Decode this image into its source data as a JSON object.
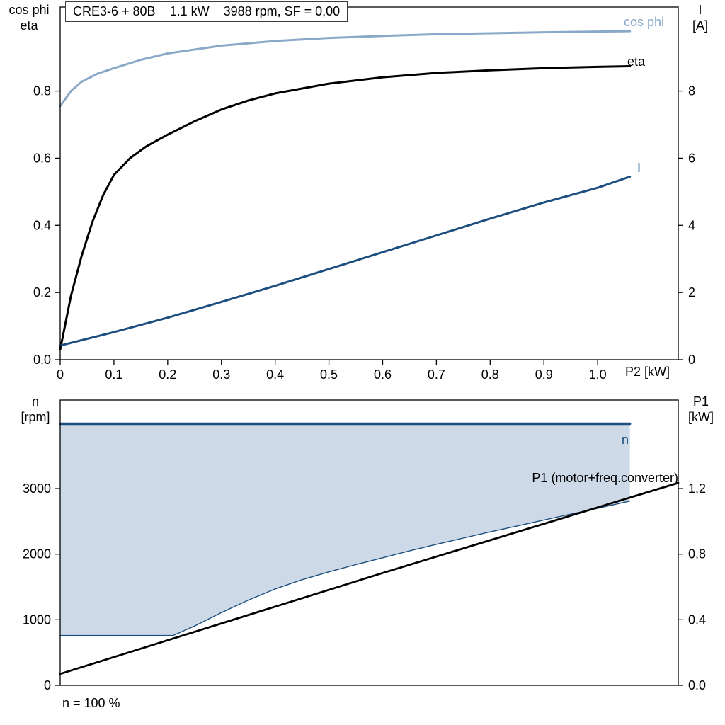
{
  "window": {
    "background": "#ffffff"
  },
  "title_box": {
    "parts": [
      "CRE3-6 + 80B",
      "1.1 kW",
      "3988 rpm, SF = 0,00"
    ]
  },
  "labels": {
    "top_left_axis": [
      "cos phi",
      "eta"
    ],
    "top_right_axis": [
      "I",
      "[A]"
    ],
    "bottom_left_axis": [
      "n",
      "[rpm]"
    ],
    "bottom_right_axis": [
      "P1",
      "[kW]"
    ],
    "x_axis_title": "P2 [kW]",
    "curve_cos_phi": "cos phi",
    "curve_eta": "eta",
    "curve_current": "I",
    "curve_n": "n",
    "curve_p1": "P1 (motor+freq.converter)",
    "footnote": "n = 100 %"
  },
  "colors": {
    "steel_blue": "#8aa8c8",
    "dark_blue": "#1c4f7f",
    "black": "#000000",
    "area_fill": "#cdd9e6",
    "border": "#000000"
  },
  "chart_data": [
    {
      "id": "top",
      "type": "line",
      "title": "CRE3-6 + 80B  1.1 kW  3988 rpm, SF = 0,00",
      "x": {
        "label": "P2 [kW]",
        "min": 0,
        "max": 1.15,
        "ticks": [
          0,
          0.1,
          0.2,
          0.3,
          0.4,
          0.5,
          0.6,
          0.7,
          0.8,
          0.9,
          1.0
        ],
        "tick_labels": [
          "0",
          "0.1",
          "0.2",
          "0.3",
          "0.4",
          "0.5",
          "0.6",
          "0.7",
          "0.8",
          "0.9",
          "1.0"
        ]
      },
      "y_left": {
        "label": "cos phi / eta",
        "min": 0,
        "max": 1.05,
        "ticks": [
          0,
          0.2,
          0.4,
          0.6,
          0.8
        ],
        "tick_labels": [
          "0.0",
          "0.2",
          "0.4",
          "0.6",
          "0.8"
        ]
      },
      "y_right": {
        "label": "I [A]",
        "min": 0,
        "max": 10.5,
        "ticks": [
          0,
          2,
          4,
          6,
          8
        ],
        "tick_labels": [
          "0",
          "2",
          "4",
          "6",
          "8"
        ]
      },
      "grid": false,
      "series": [
        {
          "name": "cos phi",
          "axis": "left",
          "color_key": "steel_blue",
          "width": 3,
          "points": [
            [
              0,
              0.755
            ],
            [
              0.02,
              0.8
            ],
            [
              0.04,
              0.828
            ],
            [
              0.07,
              0.852
            ],
            [
              0.1,
              0.868
            ],
            [
              0.15,
              0.893
            ],
            [
              0.2,
              0.912
            ],
            [
              0.3,
              0.935
            ],
            [
              0.4,
              0.949
            ],
            [
              0.5,
              0.958
            ],
            [
              0.6,
              0.964
            ],
            [
              0.7,
              0.969
            ],
            [
              0.8,
              0.972
            ],
            [
              0.9,
              0.975
            ],
            [
              1.0,
              0.977
            ],
            [
              1.06,
              0.978
            ]
          ]
        },
        {
          "name": "eta",
          "axis": "left",
          "color_key": "black",
          "width": 3,
          "points": [
            [
              0,
              0.03
            ],
            [
              0.01,
              0.11
            ],
            [
              0.02,
              0.19
            ],
            [
              0.04,
              0.31
            ],
            [
              0.06,
              0.41
            ],
            [
              0.08,
              0.49
            ],
            [
              0.1,
              0.55
            ],
            [
              0.13,
              0.6
            ],
            [
              0.16,
              0.635
            ],
            [
              0.2,
              0.67
            ],
            [
              0.25,
              0.71
            ],
            [
              0.3,
              0.745
            ],
            [
              0.35,
              0.772
            ],
            [
              0.4,
              0.793
            ],
            [
              0.5,
              0.822
            ],
            [
              0.6,
              0.841
            ],
            [
              0.7,
              0.854
            ],
            [
              0.8,
              0.862
            ],
            [
              0.9,
              0.868
            ],
            [
              1.0,
              0.872
            ],
            [
              1.06,
              0.874
            ]
          ]
        },
        {
          "name": "I",
          "axis": "right",
          "color_key": "dark_blue",
          "width": 3,
          "points": [
            [
              0,
              0.42
            ],
            [
              0.1,
              0.82
            ],
            [
              0.2,
              1.25
            ],
            [
              0.3,
              1.72
            ],
            [
              0.4,
              2.2
            ],
            [
              0.5,
              2.7
            ],
            [
              0.6,
              3.2
            ],
            [
              0.7,
              3.7
            ],
            [
              0.8,
              4.2
            ],
            [
              0.9,
              4.68
            ],
            [
              1.0,
              5.12
            ],
            [
              1.06,
              5.45
            ]
          ]
        }
      ]
    },
    {
      "id": "bottom",
      "type": "line+area",
      "x": {
        "label": "",
        "min": 0,
        "max": 1.15,
        "ticks": [],
        "tick_labels": []
      },
      "y_left": {
        "label": "n [rpm]",
        "min": 0,
        "max": 4350,
        "ticks": [
          0,
          1000,
          2000,
          3000
        ],
        "tick_labels": [
          "0",
          "1000",
          "2000",
          "3000"
        ]
      },
      "y_right": {
        "label": "P1 [kW]",
        "min": 0,
        "max": 1.74,
        "ticks": [
          0,
          0.4,
          0.8,
          1.2
        ],
        "tick_labels": [
          "0.0",
          "0.4",
          "0.8",
          "1.2"
        ]
      },
      "grid": false,
      "footnote": "n = 100 %",
      "area": {
        "upper_value": 3988,
        "x_start": 0,
        "x_end": 1.06,
        "axis": "left",
        "fill_key": "area_fill",
        "lower_points": [
          [
            0,
            760
          ],
          [
            0.21,
            760
          ],
          [
            0.25,
            905
          ],
          [
            0.3,
            1110
          ],
          [
            0.35,
            1300
          ],
          [
            0.4,
            1470
          ],
          [
            0.45,
            1610
          ],
          [
            0.5,
            1730
          ],
          [
            0.55,
            1840
          ],
          [
            0.6,
            1945
          ],
          [
            0.65,
            2050
          ],
          [
            0.7,
            2150
          ],
          [
            0.75,
            2245
          ],
          [
            0.8,
            2340
          ],
          [
            0.85,
            2430
          ],
          [
            0.9,
            2520
          ],
          [
            0.95,
            2610
          ],
          [
            1.0,
            2700
          ],
          [
            1.06,
            2810
          ]
        ]
      },
      "series": [
        {
          "name": "n",
          "axis": "left",
          "color_key": "dark_blue",
          "width": 3.4,
          "points": [
            [
              0,
              3988
            ],
            [
              1.06,
              3988
            ]
          ]
        },
        {
          "name": "min speed boundary",
          "axis": "left",
          "color_key": "dark_blue",
          "width": 1.4,
          "points": [
            [
              0,
              760
            ],
            [
              0.21,
              760
            ],
            [
              0.25,
              905
            ],
            [
              0.3,
              1110
            ],
            [
              0.35,
              1300
            ],
            [
              0.4,
              1470
            ],
            [
              0.45,
              1610
            ],
            [
              0.5,
              1730
            ],
            [
              0.55,
              1840
            ],
            [
              0.6,
              1945
            ],
            [
              0.65,
              2050
            ],
            [
              0.7,
              2150
            ],
            [
              0.75,
              2245
            ],
            [
              0.8,
              2340
            ],
            [
              0.85,
              2430
            ],
            [
              0.9,
              2520
            ],
            [
              0.95,
              2610
            ],
            [
              1.0,
              2700
            ],
            [
              1.06,
              2810
            ]
          ]
        },
        {
          "name": "P1 (motor+freq.converter)",
          "axis": "right",
          "color_key": "black",
          "width": 2.8,
          "points": [
            [
              0,
              0.07
            ],
            [
              0.2,
              0.275
            ],
            [
              0.4,
              0.48
            ],
            [
              0.6,
              0.685
            ],
            [
              0.8,
              0.885
            ],
            [
              1.0,
              1.085
            ],
            [
              1.15,
              1.235
            ]
          ]
        }
      ]
    }
  ]
}
